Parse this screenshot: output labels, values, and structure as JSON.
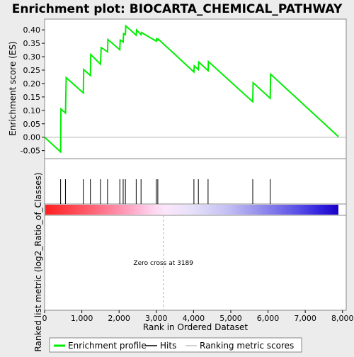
{
  "chart_data": {
    "type": "line",
    "title": "Enrichment plot: BIOCARTA_CHEMICAL_PATHWAY",
    "ylabel_top": "Enrichment score (ES)",
    "ylabel_bottom": "Ranked list metric (log2_Ratio_of_Classes)",
    "xlabel": "Rank in Ordered Dataset",
    "xlim": [
      0,
      8100
    ],
    "ylim": [
      -0.08,
      0.44
    ],
    "yticks": [
      "-0.05",
      "0.00",
      "0.05",
      "0.10",
      "0.15",
      "0.20",
      "0.25",
      "0.30",
      "0.35",
      "0.40"
    ],
    "ytick_values": [
      -0.05,
      0.0,
      0.05,
      0.1,
      0.15,
      0.2,
      0.25,
      0.3,
      0.35,
      0.4
    ],
    "xticks": [
      "0",
      "1,000",
      "2,000",
      "3,000",
      "4,000",
      "5,000",
      "6,000",
      "7,000",
      "8,000"
    ],
    "xtick_values": [
      0,
      1000,
      2000,
      3000,
      4000,
      5000,
      6000,
      7000,
      8000
    ],
    "series": [
      {
        "name": "Enrichment profile",
        "color": "#00ee00",
        "x": [
          0,
          430,
          440,
          560,
          580,
          1040,
          1050,
          1230,
          1240,
          1500,
          1520,
          1690,
          1700,
          2020,
          2030,
          2110,
          2120,
          2170,
          2180,
          2460,
          2470,
          2590,
          2600,
          3000,
          3010,
          3040,
          3050,
          4010,
          4020,
          4130,
          4140,
          4390,
          4400,
          5590,
          5600,
          6060,
          6070,
          7890
        ],
        "y": [
          0.0,
          -0.055,
          0.105,
          0.09,
          0.222,
          0.165,
          0.252,
          0.23,
          0.308,
          0.272,
          0.334,
          0.318,
          0.364,
          0.326,
          0.362,
          0.355,
          0.386,
          0.382,
          0.415,
          0.38,
          0.4,
          0.382,
          0.39,
          0.358,
          0.366,
          0.362,
          0.366,
          0.243,
          0.266,
          0.252,
          0.28,
          0.248,
          0.282,
          0.132,
          0.203,
          0.145,
          0.235,
          0.002
        ]
      }
    ],
    "hits": [
      430,
      560,
      1040,
      1230,
      1500,
      1690,
      2020,
      2110,
      2170,
      2460,
      2590,
      3000,
      3040,
      4010,
      4130,
      4390,
      5590,
      6060
    ],
    "zero_cross_rank": 3189,
    "annotation": "Zero cross at 3189",
    "legend": [
      "Enrichment profile",
      "Hits",
      "Ranking metric scores"
    ],
    "colors": {
      "profile": "#00ee00",
      "hits": "#000000",
      "zero_line": "#b0b0b0",
      "ranking": "#c0c0c0"
    }
  }
}
